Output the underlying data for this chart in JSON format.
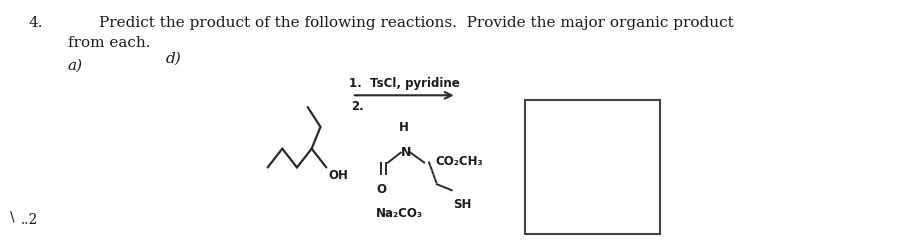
{
  "question_num": "4.",
  "question_text": "Predict the product of the following reactions.  Provide the major organic product",
  "question_text2": "from each.",
  "label_a": "a)",
  "label_d": "d)",
  "reagent1": "1.  TsCl, pyridine",
  "reagent2_num": "2.",
  "reagent_H": "H",
  "reagent_N": "N",
  "reagent_CO2CH3": "CO₂CH₃",
  "reagent_O": "O",
  "reagent_base": "Na₂CO₃",
  "reagent_SH": "SH",
  "OH_label": "OH",
  "bg_color": "#ffffff",
  "text_color": "#1a1a1a",
  "font_size_main": 11,
  "font_size_label": 11,
  "font_size_reagent": 9
}
